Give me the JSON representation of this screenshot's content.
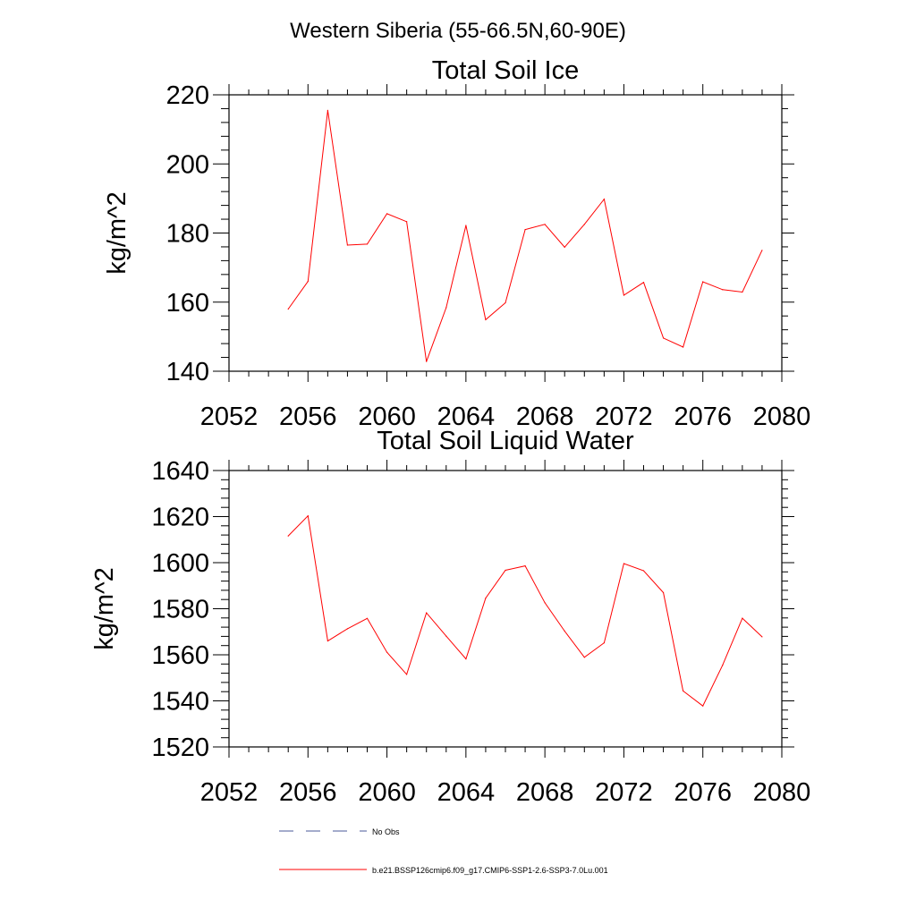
{
  "page_title": "Western Siberia (55-66.5N,60-90E)",
  "chart_data": [
    {
      "type": "line",
      "title": "Total Soil Ice",
      "xlabel": "",
      "ylabel": "kg/m^2",
      "xlim": [
        2052,
        2080
      ],
      "ylim": [
        140,
        220
      ],
      "x_ticks": [
        2052,
        2056,
        2060,
        2064,
        2068,
        2072,
        2076,
        2080
      ],
      "y_ticks": [
        140,
        160,
        180,
        200,
        220
      ],
      "grid": false,
      "series": [
        {
          "color": "#ff0000",
          "x": [
            2055,
            2056,
            2057,
            2058,
            2059,
            2060,
            2061,
            2062,
            2063,
            2064,
            2065,
            2066,
            2067,
            2068,
            2069,
            2070,
            2071,
            2072,
            2073,
            2074,
            2075,
            2076,
            2077,
            2078,
            2079
          ],
          "values": [
            158,
            166,
            215.5,
            176.5,
            176.8,
            185.6,
            183.3,
            142.8,
            158.4,
            182.2,
            154.9,
            159.8,
            181.0,
            182.5,
            175.9,
            182.5,
            189.8,
            162.0,
            165.7,
            149.6,
            147.0,
            165.9,
            163.6,
            162.9,
            175.0
          ]
        }
      ]
    },
    {
      "type": "line",
      "title": "Total Soil Liquid Water",
      "xlabel": "",
      "ylabel": "kg/m^2",
      "xlim": [
        2052,
        2080
      ],
      "ylim": [
        1520,
        1640
      ],
      "x_ticks": [
        2052,
        2056,
        2060,
        2064,
        2068,
        2072,
        2076,
        2080
      ],
      "y_ticks": [
        1520,
        1540,
        1560,
        1580,
        1600,
        1620,
        1640
      ],
      "grid": false,
      "series": [
        {
          "color": "#ff0000",
          "x": [
            2055,
            2056,
            2057,
            2058,
            2059,
            2060,
            2061,
            2062,
            2063,
            2064,
            2065,
            2066,
            2067,
            2068,
            2069,
            2070,
            2071,
            2072,
            2073,
            2074,
            2075,
            2076,
            2077,
            2078,
            2079
          ],
          "values": [
            1611.6,
            1620.3,
            1566.0,
            1571.3,
            1575.8,
            1561.1,
            1551.5,
            1578.2,
            1568.1,
            1558.2,
            1584.6,
            1596.7,
            1598.6,
            1582.6,
            1570.3,
            1558.9,
            1565.2,
            1599.6,
            1596.5,
            1587.0,
            1544.3,
            1537.8,
            1555.5,
            1575.9,
            1567.8
          ]
        }
      ]
    }
  ],
  "legend": {
    "placement": "bottom",
    "entries": [
      {
        "label": "No Obs",
        "color": "#4a5a9a",
        "dash": "dashed"
      },
      {
        "label": "b.e21.BSSP126cmip6.f09_g17.CMIP6-SSP1-2.6-SSP3-7.0Lu.001",
        "color": "#ff0000",
        "dash": "solid"
      }
    ]
  }
}
